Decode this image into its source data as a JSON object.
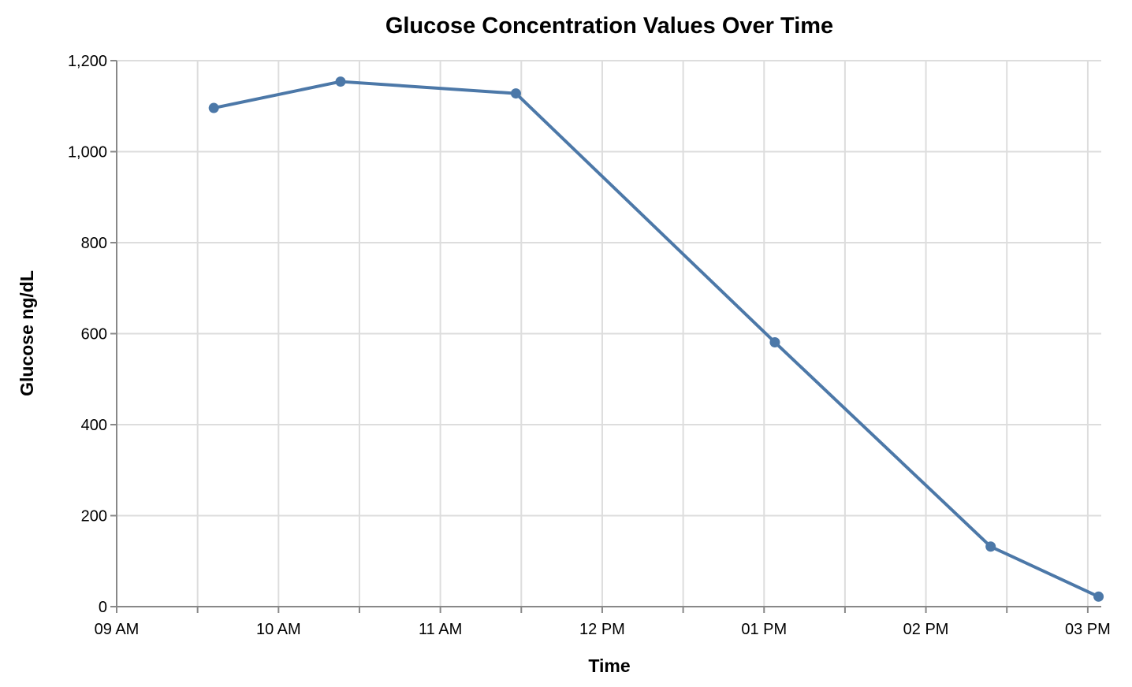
{
  "chart_data": {
    "type": "line",
    "title": "Glucose Concentration Values Over Time",
    "xlabel": "Time",
    "ylabel": "Glucose ng/dL",
    "x_type": "time",
    "xlim": [
      "09:00",
      "15:05"
    ],
    "ylim": [
      0,
      1200
    ],
    "x_ticks": [
      {
        "time": "09:00",
        "label": "09 AM"
      },
      {
        "time": "09:30",
        "label": ""
      },
      {
        "time": "10:00",
        "label": "10 AM"
      },
      {
        "time": "10:30",
        "label": ""
      },
      {
        "time": "11:00",
        "label": "11 AM"
      },
      {
        "time": "11:30",
        "label": ""
      },
      {
        "time": "12:00",
        "label": "12 PM"
      },
      {
        "time": "12:30",
        "label": ""
      },
      {
        "time": "13:00",
        "label": "01 PM"
      },
      {
        "time": "13:30",
        "label": ""
      },
      {
        "time": "14:00",
        "label": "02 PM"
      },
      {
        "time": "14:30",
        "label": ""
      },
      {
        "time": "15:00",
        "label": "03 PM"
      }
    ],
    "y_ticks": [
      {
        "value": 0,
        "label": "0"
      },
      {
        "value": 200,
        "label": "200"
      },
      {
        "value": 400,
        "label": "400"
      },
      {
        "value": 600,
        "label": "600"
      },
      {
        "value": 800,
        "label": "800"
      },
      {
        "value": 1000,
        "label": "1,000"
      },
      {
        "value": 1200,
        "label": "1,200"
      }
    ],
    "grid": true,
    "color": "#4c78a8",
    "series": [
      {
        "points": [
          {
            "x": "09:36",
            "y": 1096
          },
          {
            "x": "10:23",
            "y": 1154
          },
          {
            "x": "11:28",
            "y": 1128
          },
          {
            "x": "13:04",
            "y": 581
          },
          {
            "x": "14:24",
            "y": 132
          },
          {
            "x": "15:04",
            "y": 22
          }
        ]
      }
    ]
  }
}
